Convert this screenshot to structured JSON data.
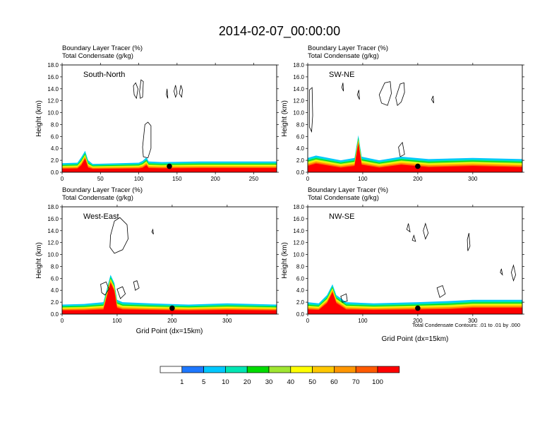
{
  "title": "2014-02-07_00:00:00",
  "footnote": "Total Condensate Contours: .01 to .01 by .000",
  "colorbar": {
    "labels": [
      "1",
      "5",
      "10",
      "20",
      "30",
      "40",
      "50",
      "60",
      "70",
      "100"
    ],
    "colors": [
      "#ffffff",
      "#1e78ff",
      "#00c8ff",
      "#00e6b4",
      "#00dc00",
      "#a0e632",
      "#ffff00",
      "#ffc800",
      "#ff9600",
      "#ff5a00",
      "#ff0000"
    ]
  },
  "chart_data": [
    {
      "type": "contour-filled cross-section",
      "panel": "South-North",
      "subtitle_line1": "Boundary Layer Tracer   (%)",
      "subtitle_line2": "Total Condensate   (g/kg)",
      "ylabel": "Height (km)",
      "xlabel": "",
      "xlim": [
        0,
        280
      ],
      "xticks": [
        "0",
        "50",
        "100",
        "150",
        "200",
        "250"
      ],
      "xtick_values": [
        0,
        50,
        100,
        150,
        200,
        250
      ],
      "ylim": [
        0,
        18
      ],
      "yticks": [
        "0.0",
        "2.0",
        "4.0",
        "6.0",
        "8.0",
        "10.0",
        "12.0",
        "14.0",
        "16.0",
        "18.0"
      ],
      "marker": {
        "x": 140,
        "y": 1.0
      },
      "boundary_layer_top": [
        [
          0,
          1.5
        ],
        [
          20,
          1.6
        ],
        [
          25,
          2.5
        ],
        [
          30,
          3.6
        ],
        [
          34,
          2.0
        ],
        [
          40,
          1.4
        ],
        [
          100,
          1.6
        ],
        [
          105,
          1.9
        ],
        [
          110,
          2.5
        ],
        [
          113,
          1.8
        ],
        [
          130,
          1.7
        ],
        [
          180,
          1.8
        ],
        [
          230,
          1.8
        ],
        [
          280,
          1.8
        ]
      ],
      "cloud_contours": [
        [
          [
            105,
            4.2
          ],
          [
            108,
            8.0
          ],
          [
            112,
            8.4
          ],
          [
            116,
            7.8
          ],
          [
            116,
            4.0
          ],
          [
            112,
            2.4
          ],
          [
            106,
            2.6
          ]
        ],
        [
          [
            93,
            14.5
          ],
          [
            96,
            15.0
          ],
          [
            99,
            14.0
          ],
          [
            97,
            12.4
          ],
          [
            94,
            13.0
          ]
        ],
        [
          [
            101,
            13.5
          ],
          [
            103,
            15.5
          ],
          [
            106,
            15.2
          ],
          [
            105,
            12.6
          ],
          [
            102,
            12.4
          ]
        ],
        [
          [
            136,
            13.0
          ],
          [
            137,
            14.0
          ],
          [
            138,
            12.4
          ]
        ],
        [
          [
            146,
            13.6
          ],
          [
            148,
            14.6
          ],
          [
            150,
            13.2
          ],
          [
            148,
            12.6
          ]
        ],
        [
          [
            153,
            13.2
          ],
          [
            155,
            14.6
          ],
          [
            157,
            13.8
          ],
          [
            156,
            12.6
          ]
        ]
      ]
    },
    {
      "type": "contour-filled cross-section",
      "panel": "SW-NE",
      "subtitle_line1": "Boundary Layer Tracer   (%)",
      "subtitle_line2": "Total Condensate   (g/kg)",
      "ylabel": "Height (km)",
      "xlabel": "",
      "xlim": [
        0,
        390
      ],
      "xticks": [
        "0",
        "100",
        "200",
        "300"
      ],
      "xtick_values": [
        0,
        100,
        200,
        300
      ],
      "ylim": [
        0,
        18
      ],
      "yticks": [
        "0.0",
        "2.0",
        "4.0",
        "6.0",
        "8.0",
        "10.0",
        "12.0",
        "14.0",
        "16.0",
        "18.0"
      ],
      "marker": {
        "x": 200,
        "y": 1.0
      },
      "boundary_layer_top": [
        [
          0,
          2.4
        ],
        [
          15,
          2.8
        ],
        [
          60,
          2.0
        ],
        [
          85,
          2.4
        ],
        [
          92,
          6.2
        ],
        [
          98,
          2.6
        ],
        [
          130,
          2.0
        ],
        [
          170,
          2.6
        ],
        [
          220,
          2.2
        ],
        [
          300,
          2.4
        ],
        [
          390,
          2.2
        ]
      ],
      "cloud_contours": [
        [
          [
            3,
            13.8
          ],
          [
            8,
            14.2
          ],
          [
            9,
            9.5
          ],
          [
            7,
            6.8
          ],
          [
            3,
            7.6
          ]
        ],
        [
          [
            130,
            13.0
          ],
          [
            140,
            15.0
          ],
          [
            150,
            15.2
          ],
          [
            152,
            13.2
          ],
          [
            145,
            11.2
          ],
          [
            134,
            11.6
          ]
        ],
        [
          [
            160,
            12.5
          ],
          [
            168,
            14.8
          ],
          [
            175,
            15.0
          ],
          [
            176,
            13.4
          ],
          [
            170,
            11.8
          ],
          [
            163,
            11.2
          ]
        ],
        [
          [
            62,
            14.2
          ],
          [
            64,
            15.0
          ],
          [
            65,
            13.6
          ]
        ],
        [
          [
            90,
            13.0
          ],
          [
            93,
            13.8
          ],
          [
            94,
            12.2
          ]
        ],
        [
          [
            225,
            12.2
          ],
          [
            228,
            12.8
          ],
          [
            229,
            11.6
          ]
        ],
        [
          [
            165,
            4.2
          ],
          [
            172,
            5.0
          ],
          [
            176,
            3.0
          ],
          [
            168,
            2.6
          ]
        ]
      ]
    },
    {
      "type": "contour-filled cross-section",
      "panel": "West-East",
      "subtitle_line1": "Boundary Layer Tracer   (%)",
      "subtitle_line2": "Total Condensate   (g/kg)",
      "ylabel": "Height (km)",
      "xlabel": "Grid Point (dx=15km)",
      "xlim": [
        0,
        390
      ],
      "xticks": [
        "0",
        "100",
        "200",
        "300"
      ],
      "xtick_values": [
        0,
        100,
        200,
        300
      ],
      "ylim": [
        0,
        18
      ],
      "yticks": [
        "0.0",
        "2.0",
        "4.0",
        "6.0",
        "8.0",
        "10.0",
        "12.0",
        "14.0",
        "16.0",
        "18.0"
      ],
      "marker": {
        "x": 200,
        "y": 1.0
      },
      "boundary_layer_top": [
        [
          0,
          1.6
        ],
        [
          40,
          1.7
        ],
        [
          75,
          2.0
        ],
        [
          88,
          6.6
        ],
        [
          95,
          5.2
        ],
        [
          100,
          2.4
        ],
        [
          110,
          2.0
        ],
        [
          160,
          1.8
        ],
        [
          230,
          1.6
        ],
        [
          300,
          1.8
        ],
        [
          390,
          1.6
        ]
      ],
      "cloud_contours": [
        [
          [
            88,
            13.2
          ],
          [
            95,
            15.6
          ],
          [
            105,
            16.2
          ],
          [
            118,
            15.0
          ],
          [
            120,
            12.6
          ],
          [
            110,
            10.8
          ],
          [
            95,
            10.2
          ],
          [
            87,
            11.2
          ]
        ],
        [
          [
            70,
            5.0
          ],
          [
            80,
            5.4
          ],
          [
            85,
            4.2
          ],
          [
            78,
            3.2
          ],
          [
            72,
            3.6
          ]
        ],
        [
          [
            100,
            4.2
          ],
          [
            110,
            4.6
          ],
          [
            115,
            3.4
          ],
          [
            106,
            2.6
          ]
        ],
        [
          [
            130,
            5.4
          ],
          [
            136,
            5.6
          ],
          [
            140,
            4.4
          ],
          [
            133,
            4.0
          ]
        ],
        [
          [
            163,
            13.8
          ],
          [
            165,
            14.2
          ],
          [
            166,
            13.4
          ]
        ]
      ]
    },
    {
      "type": "contour-filled cross-section",
      "panel": "NW-SE",
      "subtitle_line1": "Boundary Layer Tracer   (%)",
      "subtitle_line2": "Total Condensate   (g/kg)",
      "ylabel": "Height (km)",
      "xlabel": "Grid Point (dx=15km)",
      "xlim": [
        0,
        390
      ],
      "xticks": [
        "0",
        "100",
        "200",
        "300"
      ],
      "xtick_values": [
        0,
        100,
        200,
        300
      ],
      "ylim": [
        0,
        18
      ],
      "yticks": [
        "0.0",
        "2.0",
        "4.0",
        "6.0",
        "8.0",
        "10.0",
        "12.0",
        "14.0",
        "16.0",
        "18.0"
      ],
      "marker": {
        "x": 200,
        "y": 1.0
      },
      "boundary_layer_top": [
        [
          0,
          2.0
        ],
        [
          20,
          1.8
        ],
        [
          35,
          3.2
        ],
        [
          45,
          5.0
        ],
        [
          52,
          3.2
        ],
        [
          70,
          2.0
        ],
        [
          120,
          1.8
        ],
        [
          200,
          2.0
        ],
        [
          260,
          2.2
        ],
        [
          300,
          2.4
        ],
        [
          390,
          2.4
        ]
      ],
      "cloud_contours": [
        [
          [
            180,
            14.2
          ],
          [
            183,
            15.2
          ],
          [
            186,
            13.8
          ]
        ],
        [
          [
            190,
            12.4
          ],
          [
            193,
            13.2
          ],
          [
            196,
            12.2
          ]
        ],
        [
          [
            210,
            14.0
          ],
          [
            214,
            15.2
          ],
          [
            219,
            13.6
          ],
          [
            214,
            12.6
          ]
        ],
        [
          [
            290,
            12.5
          ],
          [
            293,
            13.6
          ],
          [
            295,
            11.4
          ],
          [
            291,
            10.6
          ]
        ],
        [
          [
            235,
            4.4
          ],
          [
            245,
            4.8
          ],
          [
            250,
            3.4
          ],
          [
            240,
            2.8
          ]
        ],
        [
          [
            60,
            3.0
          ],
          [
            70,
            3.4
          ],
          [
            72,
            2.2
          ],
          [
            63,
            2.0
          ]
        ],
        [
          [
            370,
            7.0
          ],
          [
            374,
            8.2
          ],
          [
            378,
            6.6
          ],
          [
            374,
            5.6
          ]
        ],
        [
          [
            350,
            7.0
          ],
          [
            352,
            7.6
          ],
          [
            354,
            6.6
          ]
        ]
      ]
    }
  ]
}
